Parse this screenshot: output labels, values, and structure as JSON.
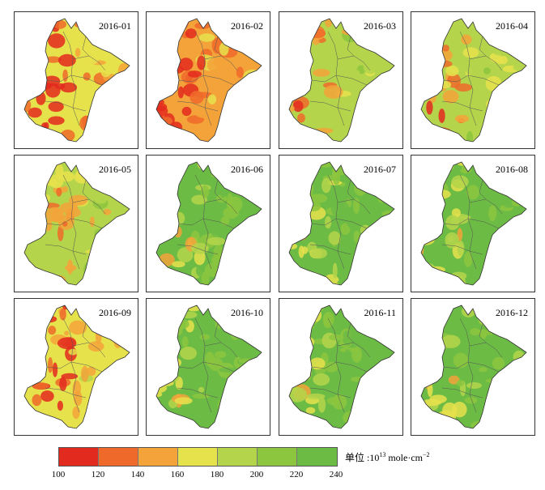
{
  "panels": [
    {
      "label": "2016-01",
      "level": 0.33
    },
    {
      "label": "2016-02",
      "level": 0.3
    },
    {
      "label": "2016-03",
      "level": 0.5
    },
    {
      "label": "2016-04",
      "level": 0.55
    },
    {
      "label": "2016-05",
      "level": 0.52
    },
    {
      "label": "2016-06",
      "level": 0.8
    },
    {
      "label": "2016-07",
      "level": 0.82
    },
    {
      "label": "2016-08",
      "level": 0.82
    },
    {
      "label": "2016-09",
      "level": 0.4
    },
    {
      "label": "2016-10",
      "level": 0.85
    },
    {
      "label": "2016-11",
      "level": 0.88
    },
    {
      "label": "2016-12",
      "level": 0.78
    }
  ],
  "legend": {
    "colors": [
      "#e32a1f",
      "#ef6a2a",
      "#f3a33a",
      "#e6e24c",
      "#b4d54b",
      "#8cc63e",
      "#6cbb45"
    ],
    "ticks": [
      "100",
      "120",
      "140",
      "160",
      "180",
      "200",
      "220",
      "240"
    ],
    "unit_prefix": "单位 :10",
    "unit_exp": "13",
    "unit_mid": " mole·cm",
    "unit_exp2": "−2"
  }
}
